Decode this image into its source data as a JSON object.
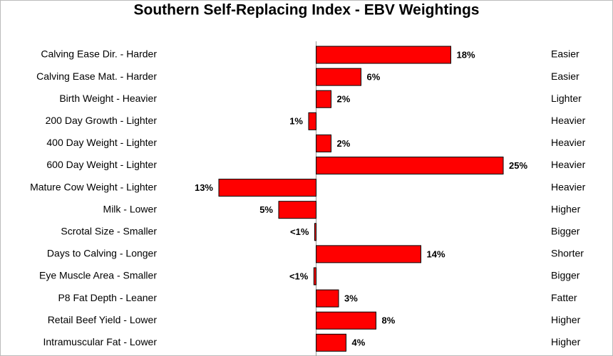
{
  "chart_data": {
    "type": "diverging-bar",
    "title": "Southern Self-Replacing Index - EBV Weightings",
    "categories": [
      "Calving Ease Dir. - Harder",
      "Calving Ease Mat. - Harder",
      "Birth Weight - Heavier",
      "200 Day Growth - Lighter",
      "400 Day Weight - Lighter",
      "600 Day Weight - Lighter",
      "Mature Cow Weight - Lighter",
      "Milk - Lower",
      "Scrotal Size - Smaller",
      "Days to Calving - Longer",
      "Eye Muscle Area - Smaller",
      "P8 Fat Depth - Leaner",
      "Retail Beef Yield - Lower",
      "Intramuscular Fat - Lower"
    ],
    "right_labels": [
      "Easier",
      "Easier",
      "Lighter",
      "Heavier",
      "Heavier",
      "Heavier",
      "Heavier",
      "Higher",
      "Bigger",
      "Shorter",
      "Bigger",
      "Fatter",
      "Higher",
      "Higher"
    ],
    "values": [
      18,
      6,
      2,
      -1,
      2,
      25,
      -13,
      -5,
      -0.2,
      14,
      -0.3,
      3,
      8,
      4
    ],
    "value_labels": [
      "18%",
      "6%",
      "2%",
      "1%",
      "2%",
      "25%",
      "13%",
      "5%",
      "<1%",
      "14%",
      "<1%",
      "3%",
      "8%",
      "4%"
    ],
    "color": "#ff0000",
    "xlim": [
      -13,
      25
    ]
  }
}
